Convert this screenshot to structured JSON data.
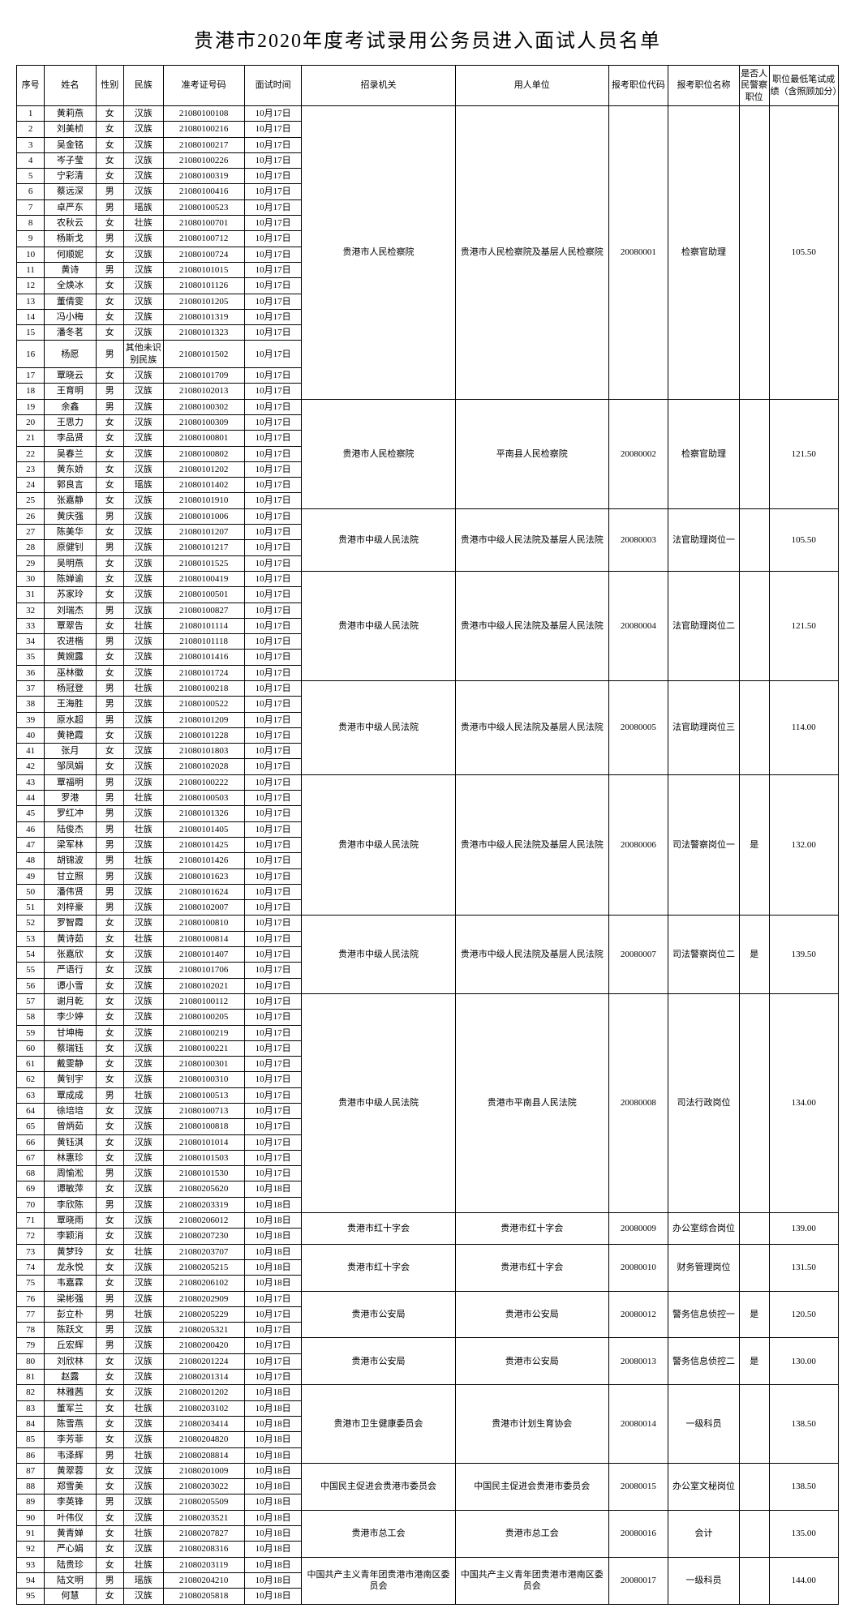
{
  "title": "贵港市2020年度考试录用公务员进入面试人员名单",
  "headers": [
    "序号",
    "姓名",
    "性别",
    "民族",
    "准考证号码",
    "面试时间",
    "招录机关",
    "用人单位",
    "报考职位代码",
    "报考职位名称",
    "是否人民警察职位",
    "职位最低笔试成绩（含照顾加分）"
  ],
  "groups": [
    {
      "org": "贵港市人民检察院",
      "unit": "贵港市人民检察院及基层人民检察院",
      "jobcode": "20080001",
      "jobname": "检察官助理",
      "police": "",
      "score": "105.50",
      "rows": [
        [
          1,
          "黄莉燕",
          "女",
          "汉族",
          "21080100108",
          "10月17日"
        ],
        [
          2,
          "刘美桢",
          "女",
          "汉族",
          "21080100216",
          "10月17日"
        ],
        [
          3,
          "吴金铭",
          "女",
          "汉族",
          "21080100217",
          "10月17日"
        ],
        [
          4,
          "岑子莹",
          "女",
          "汉族",
          "21080100226",
          "10月17日"
        ],
        [
          5,
          "宁彩清",
          "女",
          "汉族",
          "21080100319",
          "10月17日"
        ],
        [
          6,
          "蔡远深",
          "男",
          "汉族",
          "21080100416",
          "10月17日"
        ],
        [
          7,
          "卓严东",
          "男",
          "瑶族",
          "21080100523",
          "10月17日"
        ],
        [
          8,
          "农秋云",
          "女",
          "壮族",
          "21080100701",
          "10月17日"
        ],
        [
          9,
          "杨斯戈",
          "男",
          "汉族",
          "21080100712",
          "10月17日"
        ],
        [
          10,
          "何顺妮",
          "女",
          "汉族",
          "21080100724",
          "10月17日"
        ],
        [
          11,
          "黄诗",
          "男",
          "汉族",
          "21080101015",
          "10月17日"
        ],
        [
          12,
          "全焕冰",
          "女",
          "汉族",
          "21080101126",
          "10月17日"
        ],
        [
          13,
          "董倩雯",
          "女",
          "汉族",
          "21080101205",
          "10月17日"
        ],
        [
          14,
          "冯小梅",
          "女",
          "汉族",
          "21080101319",
          "10月17日"
        ],
        [
          15,
          "潘冬茗",
          "女",
          "汉族",
          "21080101323",
          "10月17日"
        ],
        [
          16,
          "杨愿",
          "男",
          "其他未识别民族",
          "21080101502",
          "10月17日"
        ],
        [
          17,
          "覃晓云",
          "女",
          "汉族",
          "21080101709",
          "10月17日"
        ],
        [
          18,
          "王育明",
          "男",
          "汉族",
          "21080102013",
          "10月17日"
        ]
      ]
    },
    {
      "org": "贵港市人民检察院",
      "unit": "平南县人民检察院",
      "jobcode": "20080002",
      "jobname": "检察官助理",
      "police": "",
      "score": "121.50",
      "rows": [
        [
          19,
          "余鑫",
          "男",
          "汉族",
          "21080100302",
          "10月17日"
        ],
        [
          20,
          "王思力",
          "女",
          "汉族",
          "21080100309",
          "10月17日"
        ],
        [
          21,
          "李品贤",
          "女",
          "汉族",
          "21080100801",
          "10月17日"
        ],
        [
          22,
          "吴春兰",
          "女",
          "汉族",
          "21080100802",
          "10月17日"
        ],
        [
          23,
          "黄东娇",
          "女",
          "汉族",
          "21080101202",
          "10月17日"
        ],
        [
          24,
          "郭良言",
          "女",
          "瑶族",
          "21080101402",
          "10月17日"
        ],
        [
          25,
          "张嘉静",
          "女",
          "汉族",
          "21080101910",
          "10月17日"
        ]
      ]
    },
    {
      "org": "贵港市中级人民法院",
      "unit": "贵港市中级人民法院及基层人民法院",
      "jobcode": "20080003",
      "jobname": "法官助理岗位一",
      "police": "",
      "score": "105.50",
      "rows": [
        [
          26,
          "黄庆强",
          "男",
          "汉族",
          "21080101006",
          "10月17日"
        ],
        [
          27,
          "陈美华",
          "女",
          "汉族",
          "21080101207",
          "10月17日"
        ],
        [
          28,
          "原健钊",
          "男",
          "汉族",
          "21080101217",
          "10月17日"
        ],
        [
          29,
          "吴明燕",
          "女",
          "汉族",
          "21080101525",
          "10月17日"
        ]
      ]
    },
    {
      "org": "贵港市中级人民法院",
      "unit": "贵港市中级人民法院及基层人民法院",
      "jobcode": "20080004",
      "jobname": "法官助理岗位二",
      "police": "",
      "score": "121.50",
      "rows": [
        [
          30,
          "陈婵谕",
          "女",
          "汉族",
          "21080100419",
          "10月17日"
        ],
        [
          31,
          "苏家玲",
          "女",
          "汉族",
          "21080100501",
          "10月17日"
        ],
        [
          32,
          "刘瑞杰",
          "男",
          "汉族",
          "21080100827",
          "10月17日"
        ],
        [
          33,
          "覃翠告",
          "女",
          "壮族",
          "21080101114",
          "10月17日"
        ],
        [
          34,
          "农进楷",
          "男",
          "汉族",
          "21080101118",
          "10月17日"
        ],
        [
          35,
          "黄婉露",
          "女",
          "汉族",
          "21080101416",
          "10月17日"
        ],
        [
          36,
          "巫林徽",
          "女",
          "汉族",
          "21080101724",
          "10月17日"
        ]
      ]
    },
    {
      "org": "贵港市中级人民法院",
      "unit": "贵港市中级人民法院及基层人民法院",
      "jobcode": "20080005",
      "jobname": "法官助理岗位三",
      "police": "",
      "score": "114.00",
      "rows": [
        [
          37,
          "杨冠登",
          "男",
          "壮族",
          "21080100218",
          "10月17日"
        ],
        [
          38,
          "王海胜",
          "男",
          "汉族",
          "21080100522",
          "10月17日"
        ],
        [
          39,
          "原水超",
          "男",
          "汉族",
          "21080101209",
          "10月17日"
        ],
        [
          40,
          "黄艳霞",
          "女",
          "汉族",
          "21080101228",
          "10月17日"
        ],
        [
          41,
          "张月",
          "女",
          "汉族",
          "21080101803",
          "10月17日"
        ],
        [
          42,
          "邹凤娟",
          "女",
          "汉族",
          "21080102028",
          "10月17日"
        ]
      ]
    },
    {
      "org": "贵港市中级人民法院",
      "unit": "贵港市中级人民法院及基层人民法院",
      "jobcode": "20080006",
      "jobname": "司法警察岗位一",
      "police": "是",
      "score": "132.00",
      "rows": [
        [
          43,
          "覃福明",
          "男",
          "汉族",
          "21080100222",
          "10月17日"
        ],
        [
          44,
          "罗港",
          "男",
          "壮族",
          "21080100503",
          "10月17日"
        ],
        [
          45,
          "罗红冲",
          "男",
          "汉族",
          "21080101326",
          "10月17日"
        ],
        [
          46,
          "陆俊杰",
          "男",
          "壮族",
          "21080101405",
          "10月17日"
        ],
        [
          47,
          "梁军林",
          "男",
          "汉族",
          "21080101425",
          "10月17日"
        ],
        [
          48,
          "胡锦波",
          "男",
          "壮族",
          "21080101426",
          "10月17日"
        ],
        [
          49,
          "甘立照",
          "男",
          "汉族",
          "21080101623",
          "10月17日"
        ],
        [
          50,
          "潘伟贤",
          "男",
          "汉族",
          "21080101624",
          "10月17日"
        ],
        [
          51,
          "刘梓豪",
          "男",
          "汉族",
          "21080102007",
          "10月17日"
        ]
      ]
    },
    {
      "org": "贵港市中级人民法院",
      "unit": "贵港市中级人民法院及基层人民法院",
      "jobcode": "20080007",
      "jobname": "司法警察岗位二",
      "police": "是",
      "score": "139.50",
      "rows": [
        [
          52,
          "罗智霞",
          "女",
          "汉族",
          "21080100810",
          "10月17日"
        ],
        [
          53,
          "黄诗茹",
          "女",
          "壮族",
          "21080100814",
          "10月17日"
        ],
        [
          54,
          "张嘉欣",
          "女",
          "汉族",
          "21080101407",
          "10月17日"
        ],
        [
          55,
          "严语行",
          "女",
          "汉族",
          "21080101706",
          "10月17日"
        ],
        [
          56,
          "谭小雪",
          "女",
          "汉族",
          "21080102021",
          "10月17日"
        ]
      ]
    },
    {
      "org": "贵港市中级人民法院",
      "unit": "贵港市平南县人民法院",
      "jobcode": "20080008",
      "jobname": "司法行政岗位",
      "police": "",
      "score": "134.00",
      "rows": [
        [
          57,
          "谢月乾",
          "女",
          "汉族",
          "21080100112",
          "10月17日"
        ],
        [
          58,
          "李少婷",
          "女",
          "汉族",
          "21080100205",
          "10月17日"
        ],
        [
          59,
          "甘坤梅",
          "女",
          "汉族",
          "21080100219",
          "10月17日"
        ],
        [
          60,
          "蔡瑞钰",
          "女",
          "汉族",
          "21080100221",
          "10月17日"
        ],
        [
          61,
          "戴雯静",
          "女",
          "汉族",
          "21080100301",
          "10月17日"
        ],
        [
          62,
          "黄钊宇",
          "女",
          "汉族",
          "21080100310",
          "10月17日"
        ],
        [
          63,
          "覃成成",
          "男",
          "壮族",
          "21080100513",
          "10月17日"
        ],
        [
          64,
          "徐培培",
          "女",
          "汉族",
          "21080100713",
          "10月17日"
        ],
        [
          65,
          "曾炳茹",
          "女",
          "汉族",
          "21080100818",
          "10月17日"
        ],
        [
          66,
          "黄钰淇",
          "女",
          "汉族",
          "21080101014",
          "10月17日"
        ],
        [
          67,
          "林惠珍",
          "女",
          "汉族",
          "21080101503",
          "10月17日"
        ],
        [
          68,
          "周愉淞",
          "男",
          "汉族",
          "21080101530",
          "10月17日"
        ],
        [
          69,
          "谭敏萍",
          "女",
          "汉族",
          "21080205620",
          "10月18日"
        ],
        [
          70,
          "李欣陈",
          "男",
          "汉族",
          "21080203319",
          "10月18日"
        ]
      ]
    },
    {
      "org": "贵港市红十字会",
      "unit": "贵港市红十字会",
      "jobcode": "20080009",
      "jobname": "办公室综合岗位",
      "police": "",
      "score": "139.00",
      "rows": [
        [
          71,
          "覃晓雨",
          "女",
          "汉族",
          "21080206012",
          "10月18日"
        ],
        [
          72,
          "李颖消",
          "女",
          "汉族",
          "21080207230",
          "10月18日"
        ]
      ]
    },
    {
      "org": "贵港市红十字会",
      "unit": "贵港市红十字会",
      "jobcode": "20080010",
      "jobname": "财务管理岗位",
      "police": "",
      "score": "131.50",
      "rows": [
        [
          73,
          "黄梦玲",
          "女",
          "壮族",
          "21080203707",
          "10月18日"
        ],
        [
          74,
          "龙永悦",
          "女",
          "汉族",
          "21080205215",
          "10月18日"
        ],
        [
          75,
          "韦嘉霖",
          "女",
          "汉族",
          "21080206102",
          "10月18日"
        ]
      ]
    },
    {
      "org": "贵港市公安局",
      "unit": "贵港市公安局",
      "jobcode": "20080012",
      "jobname": "警务信息侦控一",
      "police": "是",
      "score": "120.50",
      "rows": [
        [
          76,
          "梁彬强",
          "男",
          "汉族",
          "21080202909",
          "10月17日"
        ],
        [
          77,
          "彭立朴",
          "男",
          "壮族",
          "21080205229",
          "10月17日"
        ],
        [
          78,
          "陈跃文",
          "男",
          "汉族",
          "21080205321",
          "10月17日"
        ]
      ]
    },
    {
      "org": "贵港市公安局",
      "unit": "贵港市公安局",
      "jobcode": "20080013",
      "jobname": "警务信息侦控二",
      "police": "是",
      "score": "130.00",
      "rows": [
        [
          79,
          "丘宏辉",
          "男",
          "汉族",
          "21080200420",
          "10月17日"
        ],
        [
          80,
          "刘欣林",
          "女",
          "汉族",
          "21080201224",
          "10月17日"
        ],
        [
          81,
          "赵露",
          "女",
          "汉族",
          "21080201314",
          "10月17日"
        ]
      ]
    },
    {
      "org": "贵港市卫生健康委员会",
      "unit": "贵港市计划生育协会",
      "jobcode": "20080014",
      "jobname": "一级科员",
      "police": "",
      "score": "138.50",
      "rows": [
        [
          82,
          "林雅茜",
          "女",
          "汉族",
          "21080201202",
          "10月18日"
        ],
        [
          83,
          "董军兰",
          "女",
          "壮族",
          "21080203102",
          "10月18日"
        ],
        [
          84,
          "陈雪燕",
          "女",
          "汉族",
          "21080203414",
          "10月18日"
        ],
        [
          85,
          "李芳菲",
          "女",
          "汉族",
          "21080204820",
          "10月18日"
        ],
        [
          86,
          "韦泽辉",
          "男",
          "壮族",
          "21080208814",
          "10月18日"
        ]
      ]
    },
    {
      "org": "中国民主促进会贵港市委员会",
      "unit": "中国民主促进会贵港市委员会",
      "jobcode": "20080015",
      "jobname": "办公室文秘岗位",
      "police": "",
      "score": "138.50",
      "rows": [
        [
          87,
          "黄翠蓉",
          "女",
          "汉族",
          "21080201009",
          "10月18日"
        ],
        [
          88,
          "郑雪美",
          "女",
          "汉族",
          "21080203022",
          "10月18日"
        ],
        [
          89,
          "李英锋",
          "男",
          "汉族",
          "21080205509",
          "10月18日"
        ]
      ]
    },
    {
      "org": "贵港市总工会",
      "unit": "贵港市总工会",
      "jobcode": "20080016",
      "jobname": "会计",
      "police": "",
      "score": "135.00",
      "rows": [
        [
          90,
          "叶伟仪",
          "女",
          "汉族",
          "21080203521",
          "10月18日"
        ],
        [
          91,
          "黄青婵",
          "女",
          "壮族",
          "21080207827",
          "10月18日"
        ],
        [
          92,
          "严心娟",
          "女",
          "汉族",
          "21080208316",
          "10月18日"
        ]
      ]
    },
    {
      "org": "中国共产主义青年团贵港市港南区委员会",
      "unit": "中国共产主义青年团贵港市港南区委员会",
      "jobcode": "20080017",
      "jobname": "一级科员",
      "police": "",
      "score": "144.00",
      "rows": [
        [
          93,
          "陆贵珍",
          "女",
          "壮族",
          "21080203119",
          "10月18日"
        ],
        [
          94,
          "陆文明",
          "男",
          "瑶族",
          "21080204210",
          "10月18日"
        ],
        [
          95,
          "何慧",
          "女",
          "汉族",
          "21080205818",
          "10月18日"
        ]
      ]
    }
  ]
}
